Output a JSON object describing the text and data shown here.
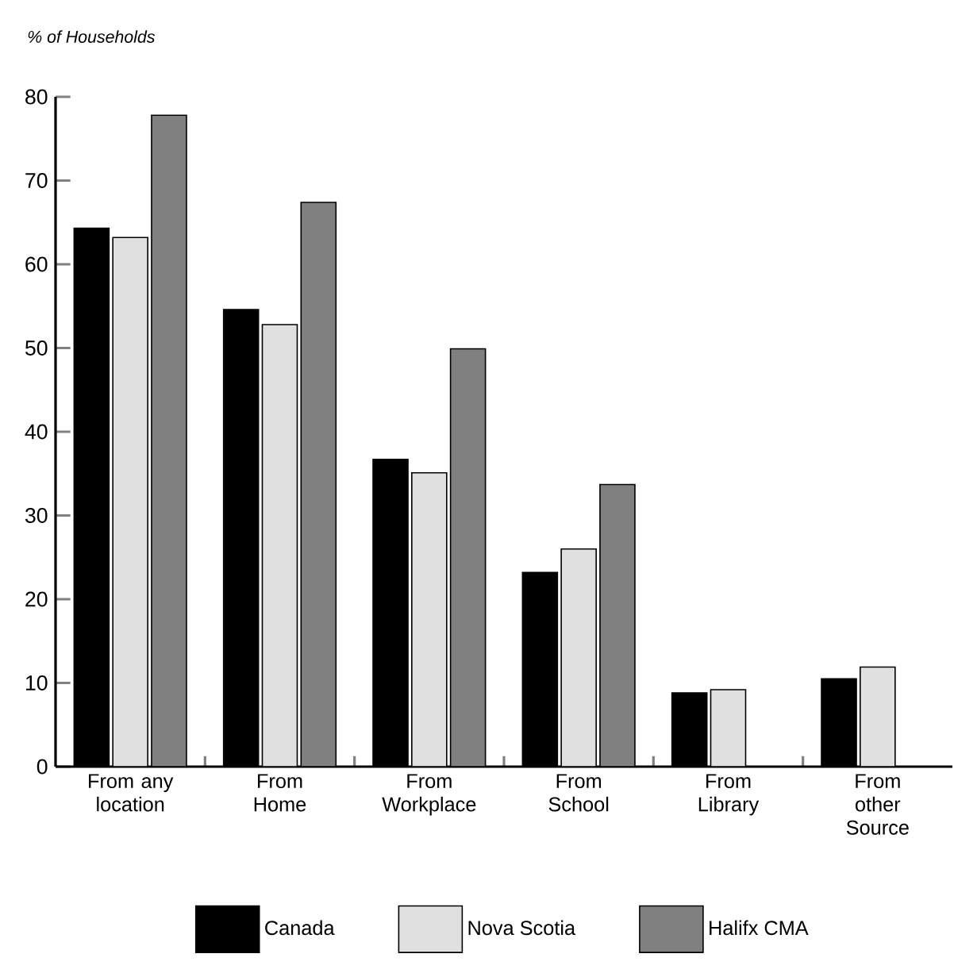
{
  "chart_data": {
    "type": "bar",
    "ylabel": "% of Households",
    "categories": [
      "From any location",
      "From Home",
      "From Workplace",
      "From School",
      "From Library",
      "From other Source"
    ],
    "series": [
      {
        "name": "Canada",
        "color": "#000000",
        "values": [
          64.3,
          54.6,
          36.7,
          23.2,
          8.8,
          10.5
        ]
      },
      {
        "name": "Nova Scotia",
        "color": "#e0e0e0",
        "values": [
          63.2,
          52.8,
          35.1,
          26.0,
          9.2,
          11.9
        ]
      },
      {
        "name": "Halifx CMA",
        "color": "#808080",
        "values": [
          77.8,
          67.4,
          49.9,
          33.7,
          null,
          null
        ]
      }
    ],
    "ylim": [
      0,
      80
    ],
    "yticks": [
      0,
      10,
      20,
      30,
      40,
      50,
      60,
      70,
      80
    ],
    "grid": false,
    "legend": "bottom"
  }
}
